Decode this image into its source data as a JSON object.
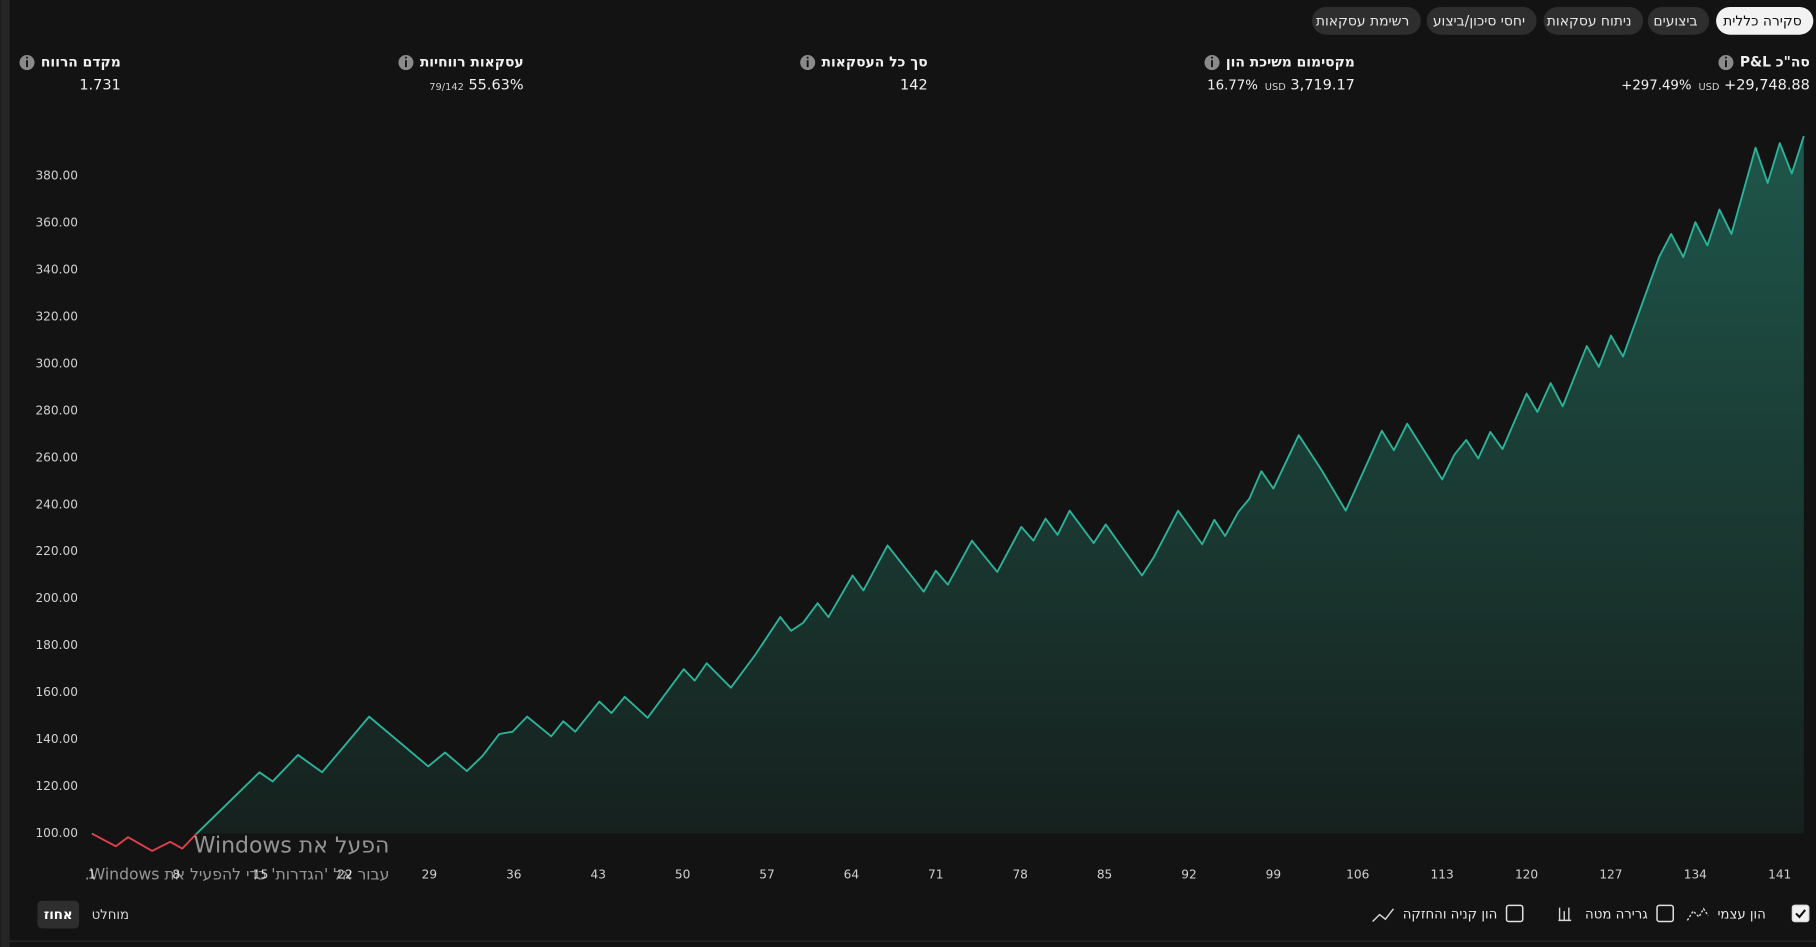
{
  "tabs": [
    {
      "label": "סקירה כללית",
      "active": true
    },
    {
      "label": "ביצועים",
      "active": false
    },
    {
      "label": "ניתוח עסקאות",
      "active": false
    },
    {
      "label": "יחסי סיכון/ביצוע",
      "active": false
    },
    {
      "label": "רשימת עסקאות",
      "active": false
    }
  ],
  "stats": [
    {
      "label": "סה\"כ P&L",
      "value": "+29,748.88",
      "unit": "USD",
      "percent": "+297.49%"
    },
    {
      "label": "מקסימום משיכת הון",
      "value": "3,719.17",
      "unit": "USD",
      "percent": "16.77%"
    },
    {
      "label": "סך כל העסקאות",
      "value": "142"
    },
    {
      "label": "עסקאות רווחיות",
      "value": "55.63%",
      "ratio": "79/142"
    },
    {
      "label": "מקדם הרווח",
      "value": "1.731"
    }
  ],
  "chart_data": {
    "type": "area",
    "x": [
      1,
      3,
      4,
      6,
      7.5,
      8.5,
      9.7,
      14.9,
      16,
      18.1,
      20.1,
      24,
      28.9,
      30.3,
      32.1,
      33.4,
      34.8,
      35.9,
      37.1,
      39.1,
      40.1,
      41.1,
      43.1,
      44.1,
      45.2,
      47.1,
      50.1,
      51,
      52,
      54,
      56,
      58.1,
      59,
      60,
      61.2,
      62.1,
      64.1,
      65,
      67,
      70,
      71,
      72,
      74,
      76.1,
      78.1,
      79.1,
      80.1,
      81.1,
      82.1,
      84.1,
      85.1,
      88.1,
      89.1,
      91.1,
      93.1,
      94.1,
      95,
      96.1,
      97,
      98,
      99,
      101.1,
      103,
      105,
      108,
      109,
      110.1,
      113,
      114,
      115,
      116,
      117,
      118,
      120,
      120.9,
      122,
      123,
      125,
      126,
      127,
      128,
      131,
      132,
      133,
      134,
      135,
      136,
      137,
      139,
      140,
      141,
      142,
      143
    ],
    "values": [
      100,
      94.6,
      98.5,
      92.6,
      96.5,
      93.6,
      100,
      126.1,
      122.2,
      133.5,
      126.1,
      149.8,
      128.6,
      134.5,
      126.6,
      133,
      142.4,
      143.4,
      149.8,
      141.4,
      147.8,
      143.4,
      156.2,
      151.3,
      158.2,
      149.3,
      170,
      165.1,
      172.5,
      162.1,
      175.9,
      192.2,
      186.3,
      189.7,
      198.1,
      192.2,
      209.9,
      203.5,
      222.7,
      203,
      211.9,
      206,
      224.7,
      211.4,
      230.6,
      224.7,
      234.1,
      227.2,
      237.5,
      223.7,
      231.6,
      209.9,
      217.8,
      237.5,
      223.2,
      233.6,
      226.7,
      237,
      242.5,
      254.3,
      246.9,
      269.6,
      254.8,
      237.5,
      271.5,
      263.2,
      274.5,
      250.8,
      261.2,
      267.6,
      259.7,
      271,
      263.7,
      287.3,
      279.5,
      291.8,
      281.9,
      307.6,
      298.7,
      312,
      303.1,
      345.5,
      355.3,
      345.5,
      360.3,
      350.4,
      365.7,
      355.3,
      392,
      377,
      394,
      381,
      397
    ],
    "color": "#2bb39a",
    "negative_color": "#e2404c",
    "xlim": [
      0,
      143
    ],
    "ylim": [
      90,
      400
    ],
    "xticks": [
      1,
      8,
      15,
      22,
      29,
      36,
      43,
      50,
      57,
      64,
      71,
      78,
      85,
      92,
      99,
      106,
      113,
      120,
      127,
      134,
      141
    ],
    "yticks": [
      {
        "value": 100,
        "label": "100.00"
      },
      {
        "value": 120,
        "label": "120.00"
      },
      {
        "value": 140,
        "label": "140.00"
      },
      {
        "value": 160,
        "label": "160.00"
      },
      {
        "value": 180,
        "label": "180.00"
      },
      {
        "value": 200,
        "label": "200.00"
      },
      {
        "value": 220,
        "label": "220.00"
      },
      {
        "value": 240,
        "label": "240.00"
      },
      {
        "value": 260,
        "label": "260.00"
      },
      {
        "value": 280,
        "label": "280.00"
      },
      {
        "value": 300,
        "label": "300.00"
      },
      {
        "value": 320,
        "label": "320.00"
      },
      {
        "value": 340,
        "label": "340.00"
      },
      {
        "value": 360,
        "label": "360.00"
      },
      {
        "value": 380,
        "label": "380.00"
      }
    ]
  },
  "legend_options": [
    {
      "label": "הון עצמי",
      "checked": true
    },
    {
      "label": "גרירה מטה",
      "checked": false
    },
    {
      "label": "הון קניה והחזקה",
      "checked": false
    }
  ],
  "scale_buttons": [
    {
      "label": "אחוז",
      "active": true
    },
    {
      "label": "מוחלט",
      "active": false
    }
  ],
  "watermark": {
    "title": "הפעל את Windows",
    "subtitle": "עבור אל 'הגדרות' כדי להפעיל את Windows."
  }
}
